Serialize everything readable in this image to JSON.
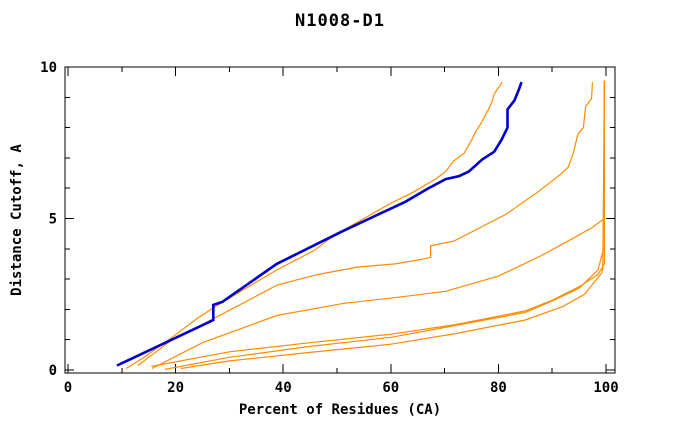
{
  "title": "N1008-D1",
  "chart_data": {
    "type": "line",
    "title": "N1008-D1",
    "xlabel": "Percent of Residues (CA)",
    "ylabel": "Distance Cutoff, A",
    "xlim": [
      0,
      100
    ],
    "ylim": [
      0,
      10
    ],
    "x_major_ticks": [
      0,
      20,
      40,
      60,
      80,
      100
    ],
    "x_minor_ticks": [
      10,
      30,
      50,
      70,
      90
    ],
    "y_major_ticks": [
      0,
      5,
      10
    ],
    "y_minor_ticks": [
      1,
      2,
      3,
      4,
      6,
      7,
      8,
      9
    ],
    "grid": false,
    "legend": "none",
    "colors": {
      "blue": "#0000cc",
      "orange": "#ff8c00",
      "axis": "#000000",
      "text": "#000000"
    },
    "series": [
      {
        "name": "orange-low-3",
        "color": "orange",
        "width": 1.2,
        "points": [
          [
            21,
            0.05
          ],
          [
            30,
            0.3
          ],
          [
            45,
            0.58
          ],
          [
            60,
            0.85
          ],
          [
            72,
            1.2
          ],
          [
            85,
            1.65
          ],
          [
            92,
            2.1
          ],
          [
            96,
            2.5
          ],
          [
            99.2,
            3.2
          ],
          [
            99.4,
            3.35
          ],
          [
            99.7,
            9.55
          ]
        ]
      },
      {
        "name": "orange-low-2",
        "color": "orange",
        "width": 1.2,
        "points": [
          [
            18,
            0.02
          ],
          [
            30,
            0.42
          ],
          [
            45,
            0.78
          ],
          [
            60,
            1.08
          ],
          [
            72,
            1.47
          ],
          [
            85,
            1.9
          ],
          [
            90,
            2.28
          ],
          [
            95,
            2.7
          ],
          [
            98.5,
            3.3
          ],
          [
            99.4,
            3.9
          ],
          [
            99.7,
            4.05
          ],
          [
            99.7,
            9.55
          ]
        ]
      },
      {
        "name": "orange-low-1",
        "color": "orange",
        "width": 1.2,
        "points": [
          [
            15.5,
            0.12
          ],
          [
            30,
            0.6
          ],
          [
            45,
            0.9
          ],
          [
            60,
            1.18
          ],
          [
            72,
            1.5
          ],
          [
            85,
            1.95
          ],
          [
            90,
            2.3
          ],
          [
            95,
            2.75
          ],
          [
            98.5,
            3.15
          ],
          [
            99.7,
            3.5
          ],
          [
            99.7,
            9.55
          ]
        ]
      },
      {
        "name": "orange-mid-2",
        "color": "orange",
        "width": 1.2,
        "points": [
          [
            15.6,
            0.05
          ],
          [
            25,
            0.9
          ],
          [
            38.8,
            1.8
          ],
          [
            51.3,
            2.2
          ],
          [
            61.3,
            2.4
          ],
          [
            70.3,
            2.6
          ],
          [
            80,
            3.1
          ],
          [
            87.7,
            3.75
          ],
          [
            93.9,
            4.35
          ],
          [
            97.4,
            4.7
          ],
          [
            99.7,
            5.0
          ],
          [
            99.7,
            9.55
          ]
        ]
      },
      {
        "name": "orange-mid-1",
        "color": "orange",
        "width": 1.2,
        "points": [
          [
            13,
            0.15
          ],
          [
            19,
            0.95
          ],
          [
            26,
            1.6
          ],
          [
            33,
            2.25
          ],
          [
            38.8,
            2.8
          ],
          [
            46.3,
            3.15
          ],
          [
            53.9,
            3.4
          ],
          [
            60.8,
            3.5
          ],
          [
            65.7,
            3.65
          ],
          [
            67.4,
            3.72
          ],
          [
            67.4,
            4.1
          ],
          [
            71.7,
            4.25
          ],
          [
            81.5,
            5.15
          ],
          [
            87.5,
            5.9
          ],
          [
            91.5,
            6.45
          ],
          [
            93,
            6.7
          ],
          [
            93.9,
            7.15
          ],
          [
            94.8,
            7.8
          ],
          [
            95.8,
            8.0
          ],
          [
            96.2,
            8.7
          ],
          [
            97.3,
            8.95
          ],
          [
            97.5,
            9.5
          ]
        ]
      },
      {
        "name": "orange-near-blue",
        "color": "orange",
        "width": 1.2,
        "points": [
          [
            10.8,
            0.05
          ],
          [
            14,
            0.4
          ],
          [
            19.5,
            1.1
          ],
          [
            24,
            1.7
          ],
          [
            27,
            2.05
          ],
          [
            32.6,
            2.65
          ],
          [
            38.8,
            3.3
          ],
          [
            45.8,
            3.95
          ],
          [
            49.5,
            4.45
          ],
          [
            55,
            5.0
          ],
          [
            60,
            5.5
          ],
          [
            64,
            5.85
          ],
          [
            68.3,
            6.3
          ],
          [
            70.2,
            6.55
          ],
          [
            71.7,
            6.9
          ],
          [
            73.6,
            7.15
          ],
          [
            74.9,
            7.55
          ],
          [
            75.9,
            7.9
          ],
          [
            76.8,
            8.15
          ],
          [
            78.3,
            8.65
          ],
          [
            78.9,
            8.9
          ],
          [
            79.2,
            9.1
          ],
          [
            80.7,
            9.5
          ]
        ]
      },
      {
        "name": "blue-model",
        "color": "blue",
        "width": 2.6,
        "points": [
          [
            9.1,
            0.15
          ],
          [
            27,
            1.65
          ],
          [
            27,
            2.15
          ],
          [
            28.7,
            2.25
          ],
          [
            38.8,
            3.5
          ],
          [
            50.7,
            4.55
          ],
          [
            62.7,
            5.55
          ],
          [
            67,
            6.0
          ],
          [
            70.2,
            6.3
          ],
          [
            72.7,
            6.4
          ],
          [
            74.5,
            6.55
          ],
          [
            77,
            6.95
          ],
          [
            79.2,
            7.2
          ],
          [
            80.6,
            7.6
          ],
          [
            81.7,
            8.0
          ],
          [
            81.7,
            8.6
          ],
          [
            83,
            8.9
          ],
          [
            83.9,
            9.3
          ],
          [
            84.3,
            9.5
          ]
        ]
      }
    ]
  }
}
